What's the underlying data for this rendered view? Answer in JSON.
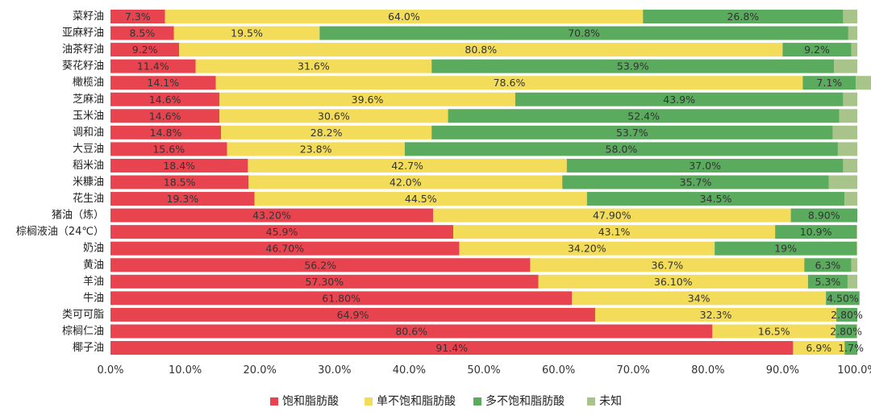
{
  "chart_data": {
    "type": "bar",
    "orientation": "horizontal",
    "stacked": true,
    "categories": [
      "菜籽油",
      "亚麻籽油",
      "油茶籽油",
      "葵花籽油",
      "橄榄油",
      "芝麻油",
      "玉米油",
      "调和油",
      "大豆油",
      "稻米油",
      "米糠油",
      "花生油",
      "猪油（炼）",
      "棕榈液油（24℃）",
      "奶油",
      "黄油",
      "羊油",
      "牛油",
      "类可可脂",
      "棕榈仁油",
      "椰子油"
    ],
    "series": [
      {
        "name": "饱和脂肪酸",
        "color": "#e84450",
        "values": [
          7.3,
          8.5,
          9.2,
          11.4,
          14.1,
          14.6,
          14.6,
          14.8,
          15.6,
          18.4,
          18.5,
          19.3,
          43.2,
          45.9,
          46.7,
          56.2,
          57.3,
          61.8,
          64.9,
          80.6,
          91.4
        ],
        "labels": [
          "7.3%",
          "8.5%",
          "9.2%",
          "11.4%",
          "14.1%",
          "14.6%",
          "14.6%",
          "14.8%",
          "15.6%",
          "18.4%",
          "18.5%",
          "19.3%",
          "43.20%",
          "45.9%",
          "46.70%",
          "56.2%",
          "57.30%",
          "61.80%",
          "64.9%",
          "80.6%",
          "91.4%"
        ]
      },
      {
        "name": "单不饱和脂肪酸",
        "color": "#f3dc5a",
        "values": [
          64.0,
          19.5,
          80.8,
          31.6,
          78.6,
          39.6,
          30.6,
          28.2,
          23.8,
          42.7,
          42.0,
          44.5,
          47.9,
          43.1,
          34.2,
          36.7,
          36.1,
          34,
          32.3,
          16.5,
          6.9
        ],
        "labels": [
          "64.0%",
          "19.5%",
          "80.8%",
          "31.6%",
          "78.6%",
          "39.6%",
          "30.6%",
          "28.2%",
          "23.8%",
          "42.7%",
          "42.0%",
          "44.5%",
          "47.90%",
          "43.1%",
          "34.20%",
          "36.7%",
          "36.10%",
          "34%",
          "32.3%",
          "16.5%",
          "6.9%"
        ]
      },
      {
        "name": "多不饱和脂肪酸",
        "color": "#5aab5e",
        "values": [
          26.8,
          70.8,
          9.2,
          53.9,
          7.1,
          43.9,
          52.4,
          53.7,
          58.0,
          37.0,
          35.7,
          34.5,
          8.9,
          10.9,
          19,
          6.3,
          5.3,
          4.5,
          2.8,
          2.8,
          1.7
        ],
        "labels": [
          "26.8%",
          "70.8%",
          "9.2%",
          "53.9%",
          "7.1%",
          "43.9%",
          "52.4%",
          "53.7%",
          "58.0%",
          "37.0%",
          "35.7%",
          "34.5%",
          "8.90%",
          "10.9%",
          "19%",
          "6.3%",
          "5.3%",
          "4.50%",
          "2.80%",
          "2.80%",
          "1.7%"
        ]
      },
      {
        "name": "未知",
        "color": "#a9c48a",
        "values": [
          1.9,
          1.2,
          0.8,
          3.1,
          2.2,
          1.9,
          2.4,
          3.3,
          2.6,
          1.9,
          3.8,
          1.7,
          0,
          0.1,
          0.1,
          0.8,
          1.3,
          0,
          0,
          0.1,
          0
        ],
        "labels": []
      }
    ],
    "xlim": [
      0,
      100
    ],
    "xticks": [
      "0.0%",
      "10.0%",
      "20.0%",
      "30.0%",
      "40.0%",
      "50.0%",
      "60.0%",
      "70.0%",
      "80.0%",
      "90.0%",
      "100.0%"
    ],
    "grid": false,
    "legend_position": "bottom"
  }
}
